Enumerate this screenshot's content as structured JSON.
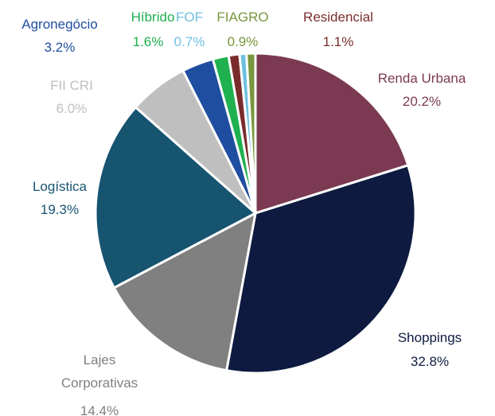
{
  "chart_data": {
    "type": "pie",
    "categories": [
      "Renda Urbana",
      "Shoppings",
      "Lajes Corporativas",
      "Logística",
      "FII CRI",
      "Agronegócio",
      "Híbrido",
      "Residencial",
      "FOF",
      "FIAGRO"
    ],
    "values": [
      20.2,
      32.8,
      14.4,
      19.3,
      6.0,
      3.2,
      1.6,
      1.1,
      0.7,
      0.9
    ],
    "value_labels": [
      "20.2%",
      "32.8%",
      "14.4%",
      "19.3%",
      "6.0%",
      "3.2%",
      "1.6%",
      "1.1%",
      "0.7%",
      "0.9%"
    ],
    "colors": [
      "#7b3a52",
      "#0e1a40",
      "#808080",
      "#165470",
      "#bfbfbf",
      "#1f4ea0",
      "#1fb050",
      "#7a2c2c",
      "#6ec0e0",
      "#78963c"
    ]
  }
}
